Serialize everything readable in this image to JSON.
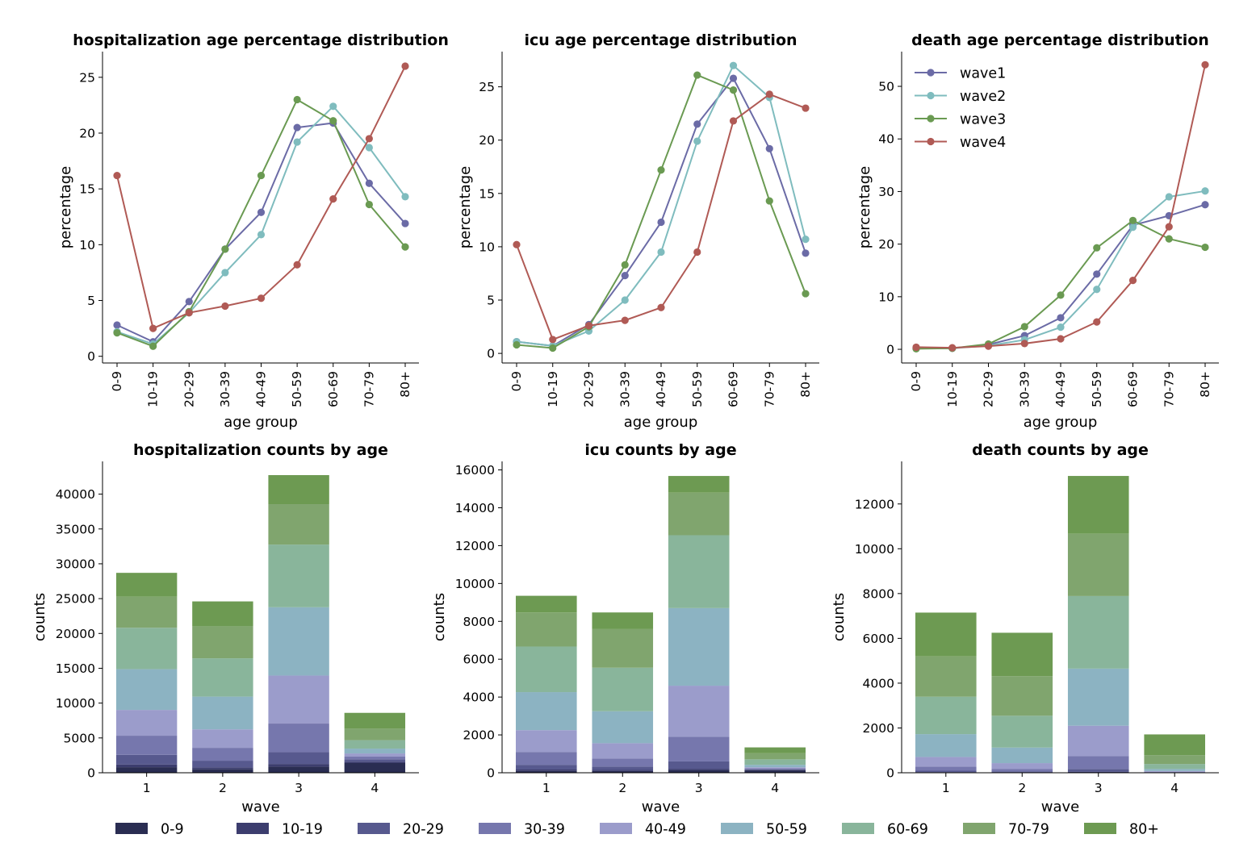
{
  "age_groups": [
    "0-9",
    "10-19",
    "20-29",
    "30-39",
    "40-49",
    "50-59",
    "60-69",
    "70-79",
    "80+"
  ],
  "wave_colors": {
    "wave1": "#6b6ba6",
    "wave2": "#7fbcbe",
    "wave3": "#6a9a52",
    "wave4": "#b05a55"
  },
  "age_colors": [
    "#2a2d52",
    "#3c3d6e",
    "#57598e",
    "#7677ad",
    "#9b9ccb",
    "#8cb3c2",
    "#89b59b",
    "#80a56e",
    "#6d9a52"
  ],
  "chart_data": [
    {
      "type": "line",
      "title": "hospitalization age percentage distribution",
      "xlabel": "age group",
      "ylabel": "percentage",
      "ylim": [
        -0.6,
        27.3
      ],
      "yticks": [
        0,
        5,
        10,
        15,
        20,
        25
      ],
      "series": [
        {
          "name": "wave1",
          "values": [
            2.8,
            1.3,
            4.9,
            9.6,
            12.9,
            20.5,
            20.9,
            15.5,
            11.9
          ]
        },
        {
          "name": "wave2",
          "values": [
            2.2,
            1.1,
            3.9,
            7.5,
            10.9,
            19.2,
            22.4,
            18.7,
            14.3
          ]
        },
        {
          "name": "wave3",
          "values": [
            2.1,
            0.9,
            4.0,
            9.6,
            16.2,
            23.0,
            21.1,
            13.6,
            9.8
          ]
        },
        {
          "name": "wave4",
          "values": [
            16.2,
            2.5,
            3.9,
            4.5,
            5.2,
            8.2,
            14.1,
            19.5,
            26.0
          ]
        }
      ]
    },
    {
      "type": "line",
      "title": "icu age percentage distribution",
      "xlabel": "age group",
      "ylabel": "percentage",
      "ylim": [
        -0.9,
        28.3
      ],
      "yticks": [
        0,
        5,
        10,
        15,
        20,
        25
      ],
      "series": [
        {
          "name": "wave1",
          "values": [
            1.1,
            0.7,
            2.7,
            7.3,
            12.3,
            21.5,
            25.8,
            19.2,
            9.4
          ]
        },
        {
          "name": "wave2",
          "values": [
            1.1,
            0.7,
            2.1,
            5.0,
            9.5,
            19.9,
            27.0,
            24.0,
            10.7
          ]
        },
        {
          "name": "wave3",
          "values": [
            0.8,
            0.5,
            2.5,
            8.3,
            17.2,
            26.1,
            24.7,
            14.3,
            5.6
          ]
        },
        {
          "name": "wave4",
          "values": [
            10.2,
            1.3,
            2.6,
            3.1,
            4.3,
            9.5,
            21.8,
            24.3,
            23.0
          ]
        }
      ]
    },
    {
      "type": "line",
      "title": "death age percentage distribution",
      "xlabel": "age group",
      "ylabel": "percentage",
      "ylim": [
        -2.6,
        56.6
      ],
      "yticks": [
        0,
        10,
        20,
        30,
        40,
        50
      ],
      "legend": "top-left",
      "series": [
        {
          "name": "wave1",
          "values": [
            0.2,
            0.2,
            0.9,
            2.6,
            6.0,
            14.3,
            23.6,
            25.4,
            27.5
          ]
        },
        {
          "name": "wave2",
          "values": [
            0.2,
            0.2,
            0.7,
            1.8,
            4.2,
            11.4,
            23.2,
            29.0,
            30.1
          ]
        },
        {
          "name": "wave3",
          "values": [
            0.1,
            0.2,
            1.0,
            4.3,
            10.3,
            19.3,
            24.5,
            21.0,
            19.4
          ]
        },
        {
          "name": "wave4",
          "values": [
            0.4,
            0.3,
            0.6,
            1.1,
            2.0,
            5.2,
            13.1,
            23.3,
            54.1
          ]
        }
      ]
    },
    {
      "type": "bar",
      "stacked": true,
      "title": "hospitalization counts by age",
      "xlabel": "wave",
      "ylabel": "counts",
      "categories": [
        "1",
        "2",
        "3",
        "4"
      ],
      "ylim": [
        0,
        44700
      ],
      "yticks": [
        0,
        5000,
        10000,
        15000,
        20000,
        25000,
        30000,
        35000,
        40000
      ],
      "series": [
        {
          "name": "0-9",
          "values": [
            800,
            500,
            880,
            1390
          ]
        },
        {
          "name": "10-19",
          "values": [
            370,
            280,
            380,
            210
          ]
        },
        {
          "name": "20-29",
          "values": [
            1400,
            950,
            1700,
            330
          ]
        },
        {
          "name": "30-39",
          "values": [
            2750,
            1850,
            4100,
            390
          ]
        },
        {
          "name": "40-49",
          "values": [
            3700,
            2650,
            6900,
            450
          ]
        },
        {
          "name": "50-59",
          "values": [
            5850,
            4700,
            9800,
            700
          ]
        },
        {
          "name": "60-69",
          "values": [
            5950,
            5500,
            9000,
            1210
          ]
        },
        {
          "name": "70-79",
          "values": [
            4450,
            4600,
            5800,
            1680
          ]
        },
        {
          "name": "80+",
          "values": [
            3430,
            3570,
            4170,
            2240
          ]
        }
      ]
    },
    {
      "type": "bar",
      "stacked": true,
      "title": "icu counts by age",
      "xlabel": "wave",
      "ylabel": "counts",
      "categories": [
        "1",
        "2",
        "3",
        "4"
      ],
      "ylim": [
        0,
        16450
      ],
      "yticks": [
        0,
        2000,
        4000,
        6000,
        8000,
        10000,
        12000,
        14000,
        16000
      ],
      "series": [
        {
          "name": "0-9",
          "values": [
            100,
            90,
            130,
            135
          ]
        },
        {
          "name": "10-19",
          "values": [
            70,
            60,
            80,
            20
          ]
        },
        {
          "name": "20-29",
          "values": [
            250,
            180,
            390,
            35
          ]
        },
        {
          "name": "30-39",
          "values": [
            680,
            420,
            1300,
            40
          ]
        },
        {
          "name": "40-49",
          "values": [
            1150,
            810,
            2700,
            60
          ]
        },
        {
          "name": "50-59",
          "values": [
            2010,
            1690,
            4100,
            130
          ]
        },
        {
          "name": "60-69",
          "values": [
            2410,
            2300,
            3850,
            290
          ]
        },
        {
          "name": "70-79",
          "values": [
            1800,
            2040,
            2250,
            320
          ]
        },
        {
          "name": "80+",
          "values": [
            880,
            880,
            880,
            310
          ]
        }
      ]
    },
    {
      "type": "bar",
      "stacked": true,
      "title": "death counts by age",
      "xlabel": "wave",
      "ylabel": "counts",
      "categories": [
        "1",
        "2",
        "3",
        "4"
      ],
      "ylim": [
        0,
        13900
      ],
      "yticks": [
        0,
        2000,
        4000,
        6000,
        8000,
        10000,
        12000
      ],
      "series": [
        {
          "name": "0-9",
          "values": [
            15,
            10,
            15,
            7
          ]
        },
        {
          "name": "10-19",
          "values": [
            15,
            10,
            25,
            5
          ]
        },
        {
          "name": "20-29",
          "values": [
            60,
            45,
            130,
            10
          ]
        },
        {
          "name": "30-39",
          "values": [
            185,
            110,
            570,
            20
          ]
        },
        {
          "name": "40-49",
          "values": [
            430,
            255,
            1360,
            35
          ]
        },
        {
          "name": "50-59",
          "values": [
            1020,
            695,
            2550,
            90
          ]
        },
        {
          "name": "60-69",
          "values": [
            1670,
            1420,
            3240,
            225
          ]
        },
        {
          "name": "70-79",
          "values": [
            1800,
            1770,
            2780,
            395
          ]
        },
        {
          "name": "80+",
          "values": [
            1955,
            1935,
            2580,
            925
          ]
        }
      ]
    }
  ]
}
